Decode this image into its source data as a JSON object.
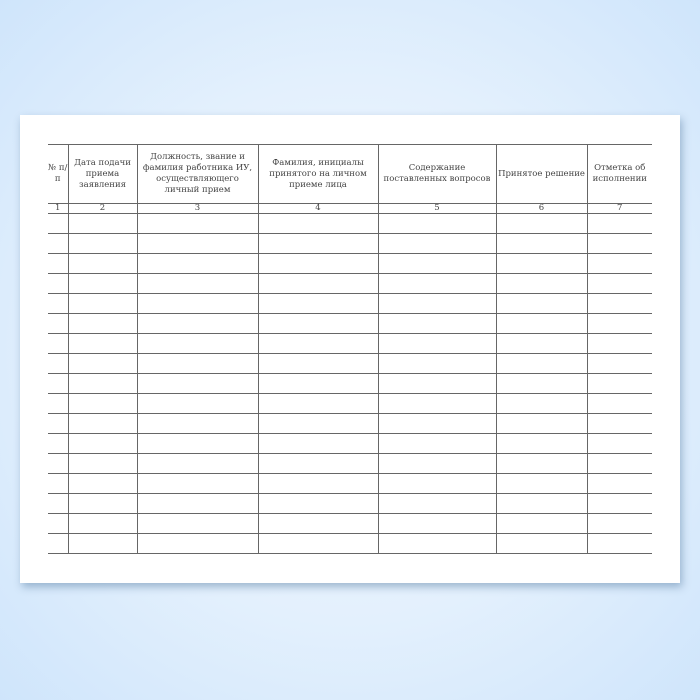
{
  "form": {
    "headers": [
      "№ п/п",
      "Дата подачи приема заявления",
      "Должность, звание и фамилия работника ИУ, осуществляющего личный прием",
      "Фамилия, инициалы принятого на личном приеме лица",
      "Содержание поставленных вопросов",
      "Принятое решение",
      "Отметка об исполнении"
    ],
    "column_numbers": [
      "1",
      "2",
      "3",
      "4",
      "5",
      "6",
      "7"
    ],
    "empty_rows": 17
  }
}
